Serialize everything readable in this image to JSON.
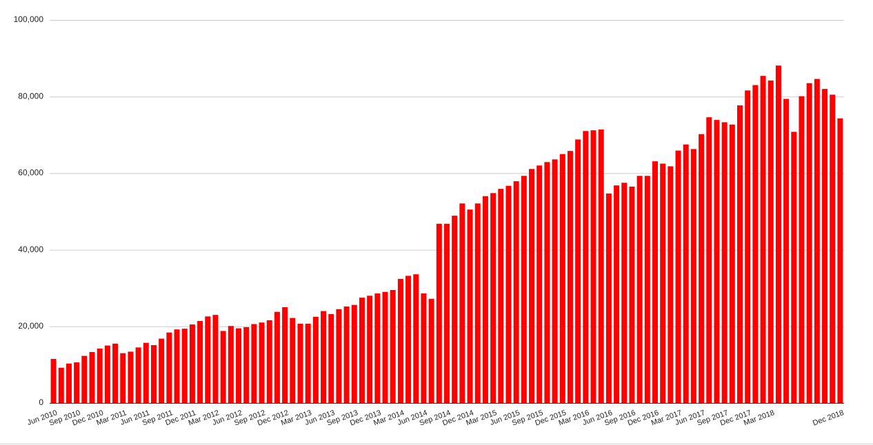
{
  "chart_data": {
    "type": "bar",
    "color": "#ff0000",
    "grid": true,
    "ylim": [
      0,
      100000
    ],
    "yticks": [
      {
        "value": 0,
        "label": "0"
      },
      {
        "value": 20000,
        "label": "20,000"
      },
      {
        "value": 40000,
        "label": "40,000"
      },
      {
        "value": 60000,
        "label": "60,000"
      },
      {
        "value": 80000,
        "label": "80,000"
      },
      {
        "value": 100000,
        "label": "100,000"
      }
    ],
    "categories": [
      "Jun 2010",
      null,
      null,
      "Sep 2010",
      null,
      null,
      "Dec 2010",
      null,
      null,
      "Mar 2011",
      null,
      null,
      "Jun 2011",
      null,
      null,
      "Sep 2011",
      null,
      null,
      "Dec 2011",
      null,
      null,
      "Mar 2012",
      null,
      null,
      "Jun 2012",
      null,
      null,
      "Sep 2012",
      null,
      null,
      "Dec 2012",
      null,
      null,
      "Mar 2013",
      null,
      null,
      "Jun 2013",
      null,
      null,
      "Sep 2013",
      null,
      null,
      "Dec 2013",
      null,
      null,
      "Mar 2014",
      null,
      null,
      "Jun 2014",
      null,
      null,
      "Sep 2014",
      null,
      null,
      "Dec 2014",
      null,
      null,
      "Mar 2015",
      null,
      null,
      "Jun 2015",
      null,
      null,
      "Sep 2015",
      null,
      null,
      "Dec 2015",
      null,
      null,
      "Mar 2016",
      null,
      null,
      "Jun 2016",
      null,
      null,
      "Sep 2016",
      null,
      null,
      "Dec 2016",
      null,
      null,
      "Mar 2017",
      null,
      null,
      "Jun 2017",
      null,
      null,
      "Sep 2017",
      null,
      null,
      "Dec 2017",
      null,
      null,
      "Mar 2018",
      null,
      null,
      null,
      null,
      null,
      null,
      null,
      null,
      "Dec 2018"
    ],
    "values": [
      11500,
      9200,
      10300,
      10600,
      12300,
      13300,
      14200,
      15000,
      15500,
      13000,
      13400,
      14500,
      15700,
      15100,
      16800,
      18400,
      19200,
      19400,
      20500,
      21400,
      22600,
      23000,
      18800,
      20100,
      19500,
      19800,
      20600,
      21000,
      21600,
      23800,
      25000,
      22200,
      20700,
      20700,
      22500,
      24000,
      23200,
      24500,
      25200,
      25600,
      27500,
      28000,
      28600,
      29000,
      29500,
      32400,
      33200,
      33600,
      28600,
      27200,
      46800,
      46800,
      48900,
      52100,
      50500,
      52100,
      54000,
      54800,
      55900,
      56700,
      57900,
      59300,
      61100,
      62000,
      62900,
      63600,
      65000,
      65800,
      68800,
      71000,
      71200,
      71400,
      54700,
      56800,
      57500,
      56500,
      59300,
      59300,
      63100,
      62500,
      61800,
      65900,
      67500,
      66300,
      70200,
      74600,
      73900,
      73300,
      72700,
      77700,
      81600,
      83000,
      85400,
      84200,
      88100,
      79400,
      70800,
      80100,
      83500,
      84600,
      82000,
      80500,
      74300
    ]
  }
}
